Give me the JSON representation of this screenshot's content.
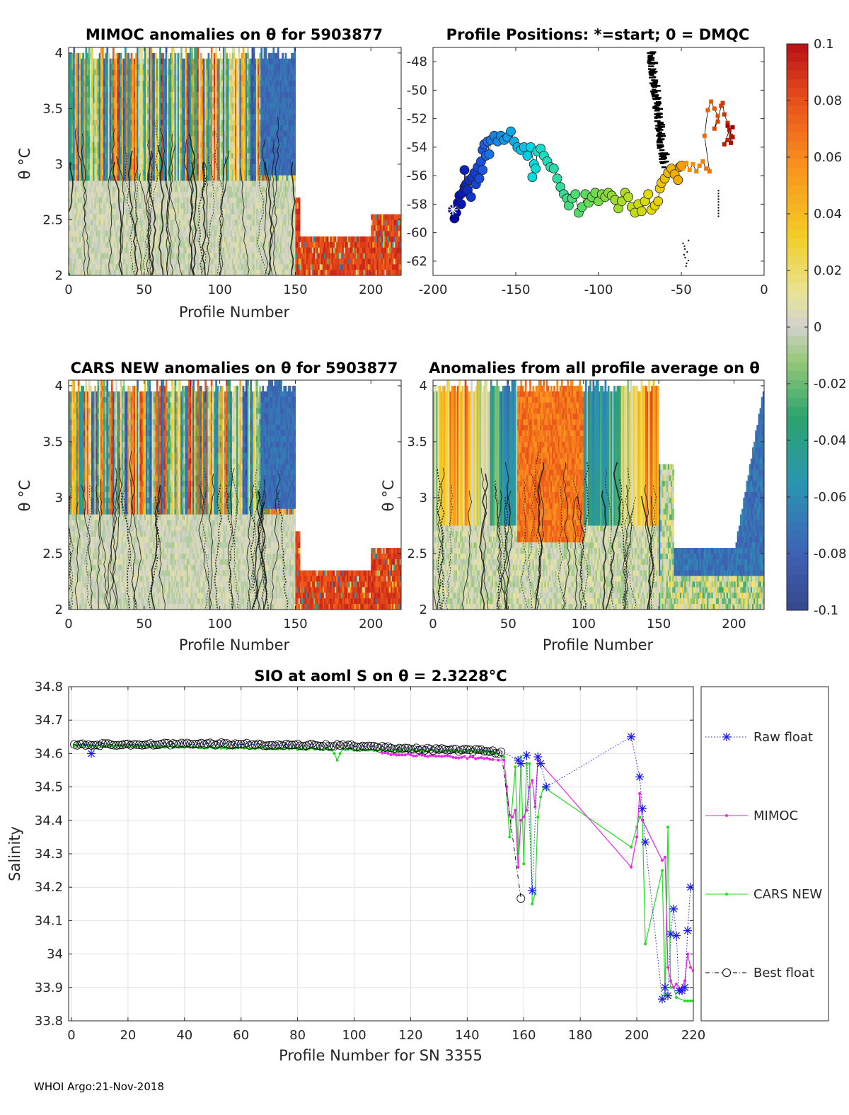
{
  "footer": "WHOI Argo:21-Nov-2018",
  "colorbar": {
    "ticks": [
      "0.1",
      "0.08",
      "0.06",
      "0.04",
      "0.02",
      "0",
      "-0.02",
      "-0.04",
      "-0.06",
      "-0.08",
      "-0.1"
    ],
    "range": [
      -0.1,
      0.1
    ]
  },
  "chart_data": [
    {
      "type": "heatmap",
      "title": "MIMOC anomalies on θ  for 5903877",
      "xlabel": "Profile Number",
      "ylabel": "θ °C",
      "xlim": [
        0,
        220
      ],
      "ylim": [
        2,
        4.05
      ],
      "xticks": [
        "0",
        "50",
        "100",
        "150",
        "200"
      ],
      "yticks": [
        "2",
        "2.5",
        "3",
        "3.5",
        "4"
      ],
      "seed": 11,
      "mode": "float"
    },
    {
      "type": "scatter",
      "title": "Profile Positions: *=start; 0 = DMQC",
      "xlim": [
        -200,
        0
      ],
      "ylim": [
        -63,
        -47
      ],
      "xticks": [
        "-200",
        "-150",
        "-100",
        "-50",
        "0"
      ],
      "yticks": [
        "-48",
        "-50",
        "-52",
        "-54",
        "-56",
        "-58",
        "-60",
        "-62"
      ],
      "track_dmqc": [
        [
          -188,
          -58.4
        ],
        [
          -187,
          -59
        ],
        [
          -186,
          -58.6
        ],
        [
          -185,
          -57.9
        ],
        [
          -184,
          -57.4
        ],
        [
          -183,
          -58
        ],
        [
          -182,
          -57.2
        ],
        [
          -181,
          -56.8
        ],
        [
          -181,
          -55.6
        ],
        [
          -180,
          -56.6
        ],
        [
          -179,
          -57
        ],
        [
          -178,
          -56.3
        ],
        [
          -177,
          -57.5
        ],
        [
          -176,
          -56.1
        ],
        [
          -175,
          -55.8
        ],
        [
          -174,
          -56.6
        ],
        [
          -173,
          -55.4
        ],
        [
          -172,
          -56.2
        ],
        [
          -171,
          -55
        ],
        [
          -170,
          -54.2
        ],
        [
          -170,
          -55.6
        ],
        [
          -169,
          -53.8
        ],
        [
          -168,
          -54.6
        ],
        [
          -167,
          -53.6
        ],
        [
          -166,
          -54.5
        ],
        [
          -165,
          -53.5
        ],
        [
          -163,
          -53.2
        ],
        [
          -161,
          -53.6
        ],
        [
          -159,
          -53.2
        ],
        [
          -157,
          -53.5
        ],
        [
          -155,
          -53.3
        ],
        [
          -153,
          -52.9
        ],
        [
          -151,
          -53.6
        ],
        [
          -149,
          -54
        ],
        [
          -147,
          -54.2
        ],
        [
          -145,
          -54
        ],
        [
          -143,
          -54.6
        ],
        [
          -141,
          -54
        ],
        [
          -139,
          -55.2
        ],
        [
          -140,
          -56.1
        ],
        [
          -138,
          -55.5
        ],
        [
          -137,
          -54.3
        ],
        [
          -135,
          -54.1
        ],
        [
          -133,
          -54.6
        ],
        [
          -131,
          -55
        ],
        [
          -129,
          -55.4
        ],
        [
          -127,
          -55.5
        ],
        [
          -125,
          -56.2
        ],
        [
          -123,
          -56.8
        ],
        [
          -121,
          -57.3
        ],
        [
          -119,
          -57.6
        ],
        [
          -118,
          -58.1
        ],
        [
          -116,
          -57.6
        ],
        [
          -114,
          -57.3
        ],
        [
          -112,
          -58.6
        ],
        [
          -110,
          -58.2
        ],
        [
          -108,
          -57.3
        ],
        [
          -106,
          -57.9
        ],
        [
          -104,
          -57.5
        ],
        [
          -102,
          -57.2
        ],
        [
          -100,
          -57.8
        ],
        [
          -98,
          -57.3
        ],
        [
          -96,
          -57.5
        ],
        [
          -94,
          -57.2
        ],
        [
          -92,
          -57.4
        ],
        [
          -90,
          -57.7
        ],
        [
          -88,
          -58.3
        ],
        [
          -86,
          -57.8
        ],
        [
          -84,
          -57.2
        ],
        [
          -82,
          -57.5
        ],
        [
          -80,
          -58.2
        ],
        [
          -78,
          -58.6
        ],
        [
          -76,
          -58
        ],
        [
          -74,
          -58.5
        ],
        [
          -72,
          -57.8
        ],
        [
          -70,
          -57.3
        ],
        [
          -68,
          -58.4
        ],
        [
          -66,
          -58.1
        ],
        [
          -64,
          -57.8
        ],
        [
          -63,
          -56.9
        ],
        [
          -62,
          -56.5
        ],
        [
          -60,
          -56.2
        ],
        [
          -58,
          -55.8
        ],
        [
          -56,
          -55.5
        ],
        [
          -54,
          -55.9
        ],
        [
          -52,
          -56.3
        ],
        [
          -51,
          -55.4
        ],
        [
          -50,
          -55.3
        ]
      ],
      "track_raw": [
        [
          -49,
          -55.5
        ],
        [
          -47,
          -55.1
        ],
        [
          -45,
          -55.6
        ],
        [
          -43,
          -55.2
        ],
        [
          -41,
          -55.7
        ],
        [
          -39,
          -55.3
        ],
        [
          -37,
          -55
        ],
        [
          -35,
          -55.5
        ],
        [
          -33,
          -55.7
        ],
        [
          -36,
          -53.2
        ],
        [
          -34,
          -51.4
        ],
        [
          -32,
          -50.8
        ],
        [
          -30,
          -51.3
        ],
        [
          -28,
          -51.8
        ],
        [
          -30,
          -52.7
        ],
        [
          -28,
          -52.2
        ],
        [
          -26,
          -51.1
        ],
        [
          -25,
          -50.9
        ],
        [
          -24,
          -51.7
        ],
        [
          -22,
          -52.3
        ],
        [
          -20,
          -53.2
        ],
        [
          -22,
          -53.5
        ],
        [
          -24,
          -53.8
        ],
        [
          -21,
          -52.8
        ],
        [
          -19,
          -53.3
        ],
        [
          -20,
          -53.7
        ],
        [
          -22,
          -52.5
        ],
        [
          -19,
          -52.6
        ]
      ],
      "seed": 3
    },
    {
      "type": "heatmap",
      "title": "CARS NEW anomalies on θ for 5903877",
      "xlabel": "Profile Number",
      "ylabel": "θ °C",
      "xlim": [
        0,
        220
      ],
      "ylim": [
        2,
        4.05
      ],
      "xticks": [
        "0",
        "50",
        "100",
        "150",
        "200"
      ],
      "yticks": [
        "2",
        "2.5",
        "3",
        "3.5",
        "4"
      ],
      "seed": 29,
      "mode": "float"
    },
    {
      "type": "heatmap",
      "title": "Anomalies from all profile average on θ",
      "xlabel": "Profile Number",
      "ylabel": "θ °C",
      "xlim": [
        0,
        220
      ],
      "ylim": [
        2,
        4.05
      ],
      "xticks": [
        "0",
        "50",
        "100",
        "150",
        "200"
      ],
      "yticks": [
        "2",
        "2.5",
        "3",
        "3.5",
        "4"
      ],
      "seed": 47,
      "mode": "avg"
    },
    {
      "type": "line",
      "title": "SIO at aoml S on θ = 2.3228°C",
      "xlabel": "Profile Number for SN 3355",
      "ylabel": "Salinity",
      "xlim": [
        -1,
        220
      ],
      "ylim": [
        33.8,
        34.8
      ],
      "xticks": [
        "0",
        "20",
        "40",
        "60",
        "80",
        "100",
        "120",
        "140",
        "160",
        "180",
        "200",
        "220"
      ],
      "yticks": [
        "33.8",
        "33.9",
        "34",
        "34.1",
        "34.2",
        "34.3",
        "34.4",
        "34.5",
        "34.6",
        "34.7",
        "34.8"
      ],
      "legend": [
        "Raw float",
        "MIMOC",
        "CARS NEW",
        "Best float"
      ],
      "legend_position": "right",
      "best_float": {
        "anchors": [
          [
            1,
            34.626
          ],
          [
            50,
            34.629
          ],
          [
            100,
            34.623
          ],
          [
            120,
            34.614
          ],
          [
            145,
            34.608
          ],
          [
            152,
            34.603
          ]
        ],
        "outlier": [
          159,
          34.166
        ]
      },
      "raw_float": {
        "x": [
          7,
          158,
          159,
          161,
          163,
          165,
          166,
          168,
          198,
          201,
          202,
          203,
          209,
          210,
          211,
          212,
          213,
          214,
          215,
          216,
          217,
          218,
          219
        ],
        "y": [
          34.6,
          34.58,
          34.57,
          34.595,
          34.19,
          34.59,
          34.57,
          34.5,
          34.65,
          34.53,
          34.435,
          34.335,
          33.865,
          33.9,
          33.875,
          34.06,
          34.135,
          34.055,
          33.89,
          33.89,
          33.9,
          34.07,
          34.2
        ]
      },
      "mimoc": {
        "start": [
          1,
          34.622
        ],
        "mid": [
          147,
          34.585
        ],
        "x": [
          149,
          151,
          153,
          154,
          155,
          156,
          157,
          158,
          159,
          160,
          161,
          162,
          163,
          164,
          165,
          198,
          200,
          201,
          202,
          209,
          210,
          211,
          212,
          213,
          214,
          215,
          216,
          217,
          218,
          219,
          220
        ],
        "y": [
          34.582,
          34.58,
          34.58,
          34.5,
          34.415,
          34.41,
          34.43,
          34.26,
          34.4,
          34.41,
          34.43,
          34.5,
          34.52,
          34.44,
          34.58,
          34.26,
          34.35,
          34.48,
          34.4,
          34.28,
          34.29,
          33.96,
          33.92,
          33.9,
          33.91,
          33.895,
          33.9,
          33.92,
          34.0,
          33.96,
          33.95
        ]
      },
      "cars": {
        "start": [
          1,
          34.625
        ],
        "mid": [
          120,
          34.605
        ],
        "dip": [
          [
            93,
            34.6
          ],
          [
            94,
            34.58
          ],
          [
            95,
            34.6
          ]
        ],
        "x": [
          150,
          153,
          155,
          157,
          158,
          159,
          160,
          161,
          162,
          163,
          164,
          165,
          166,
          167,
          198,
          200,
          201,
          202,
          203,
          209,
          210,
          211,
          212,
          213,
          214,
          217,
          218,
          219,
          220
        ],
        "y": [
          34.6,
          34.59,
          34.35,
          34.56,
          34.3,
          34.59,
          34.27,
          34.57,
          34.57,
          34.15,
          34.18,
          34.41,
          34.47,
          34.5,
          34.32,
          34.38,
          34.41,
          34.4,
          34.03,
          34.25,
          33.88,
          34.38,
          33.9,
          33.9,
          33.87,
          33.86,
          33.86,
          33.86,
          33.86
        ]
      }
    }
  ]
}
